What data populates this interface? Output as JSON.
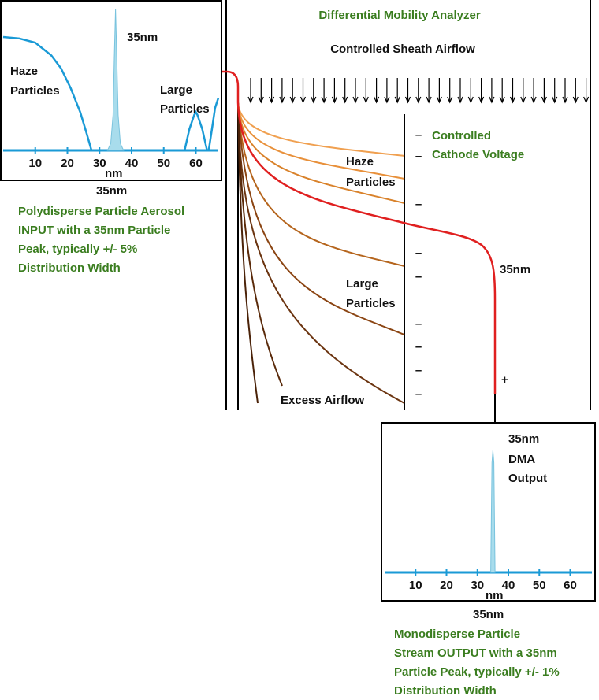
{
  "title": "Differential Mobility Analyzer",
  "sheath_label": "Controlled Sheath Airflow",
  "cathode_label": [
    "Controlled",
    "Cathode Voltage"
  ],
  "haze_label": [
    "Haze",
    "Particles"
  ],
  "large_label": [
    "Large",
    "Particles"
  ],
  "peak_label": "35nm",
  "excess_label": "Excess Airflow",
  "plus_sign": "+",
  "minus_sign": "–",
  "input_chart": {
    "peak_label": "35nm",
    "haze_label": [
      "Haze",
      "Particles"
    ],
    "large_label": [
      "Large",
      "Particles"
    ],
    "ticks": [
      "10",
      "20",
      "30",
      "40",
      "50",
      "60"
    ],
    "axis_unit": "nm",
    "below_label": "35nm"
  },
  "input_caption": [
    "Polydisperse Particle Aerosol",
    "INPUT with a 35nm Particle",
    "Peak, typically +/- 5%",
    "Distribution Width"
  ],
  "output_chart": {
    "label_lines": [
      "35nm",
      "DMA",
      "Output"
    ],
    "ticks": [
      "10",
      "20",
      "30",
      "40",
      "50",
      "60"
    ],
    "axis_unit": "nm",
    "below_label": "35nm"
  },
  "output_caption": [
    "Monodisperse Particle",
    "Stream OUTPUT with a 35nm",
    "Particle Peak, typically +/- 1%",
    "Distribution Width"
  ],
  "chart_data": [
    {
      "type": "area",
      "title": "Polydisperse Particle Aerosol INPUT",
      "xlabel": "nm",
      "xlim": [
        0,
        67
      ],
      "x_ticks": [
        10,
        20,
        30,
        40,
        50,
        60
      ],
      "series": [
        {
          "name": "Haze Particles",
          "x": [
            0,
            5,
            10,
            15,
            18,
            21,
            24,
            26,
            27.5
          ],
          "y": [
            0.8,
            0.79,
            0.76,
            0.67,
            0.58,
            0.44,
            0.27,
            0.12,
            0
          ]
        },
        {
          "name": "35nm",
          "x": [
            32.5,
            33.5,
            34.2,
            34.6,
            35,
            35.4,
            35.8,
            36.5,
            37.5
          ],
          "y": [
            0,
            0.05,
            0.25,
            0.65,
            1.0,
            0.65,
            0.25,
            0.05,
            0
          ]
        },
        {
          "name": "Large Particles",
          "x": [
            56.5,
            58,
            59.5,
            60,
            60.5,
            62,
            63.5
          ],
          "y": [
            0,
            0.15,
            0.25,
            0.27,
            0.25,
            0.15,
            0
          ]
        },
        {
          "name": "Large Particles tail",
          "x": [
            64,
            65,
            66,
            67
          ],
          "y": [
            0,
            0.15,
            0.3,
            0.37
          ]
        }
      ]
    },
    {
      "type": "area",
      "title": "DMA Output",
      "xlabel": "nm",
      "xlim": [
        0,
        67
      ],
      "x_ticks": [
        10,
        20,
        30,
        40,
        50,
        60
      ],
      "series": [
        {
          "name": "35nm DMA Output",
          "x": [
            34.3,
            34.7,
            35,
            35.3,
            35.7
          ],
          "y": [
            0,
            0.9,
            1.0,
            0.9,
            0
          ]
        }
      ]
    }
  ]
}
